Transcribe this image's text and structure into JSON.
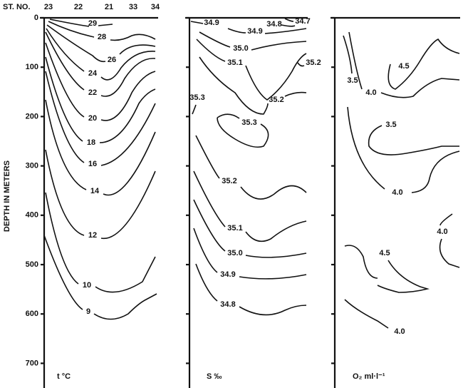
{
  "chart_data": [
    {
      "type": "contour",
      "xlabel": "ST. NO.",
      "categories": [
        "23",
        "22",
        "21",
        "33",
        "34"
      ],
      "ylabel": "DEPTH IN METERS",
      "ylim": [
        0,
        750
      ],
      "yticks": [
        0,
        100,
        200,
        300,
        400,
        500,
        600,
        700
      ],
      "label": "t °C",
      "levels": [
        29,
        28,
        26,
        24,
        22,
        20,
        18,
        16,
        14,
        12,
        10,
        9
      ]
    },
    {
      "type": "contour",
      "label": "S ‰",
      "levels": [
        34.9,
        34.9,
        34.8,
        34.7,
        {
          "value": 35,
          "label": "35.0"
        },
        35.1,
        35.2,
        35.2,
        35.3,
        35.3,
        35.2,
        35.1,
        {
          "value": 35,
          "label": "35.0"
        },
        34.9,
        34.8
      ]
    },
    {
      "type": "contour",
      "label": "O₂ ml·l⁻¹",
      "levels": [
        4.5,
        3.5,
        {
          "value": 4,
          "label": "4.0"
        },
        3.5,
        {
          "value": 4,
          "label": "4.0"
        },
        {
          "value": 4,
          "label": "4.0"
        },
        4.5,
        {
          "value": 4,
          "label": "4.0"
        }
      ]
    }
  ]
}
